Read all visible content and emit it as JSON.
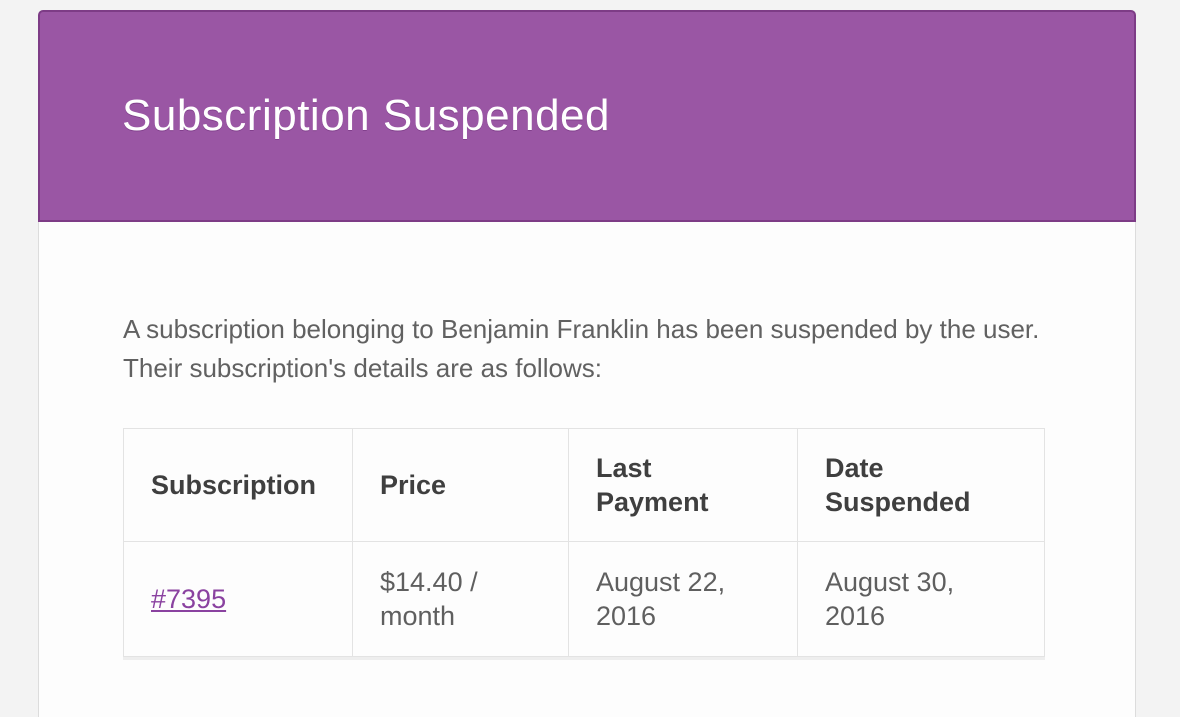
{
  "colors": {
    "page_background": "#f3f3f3",
    "header_background": "#9a56a4",
    "header_border": "#7d3c86",
    "header_text": "#ffffff",
    "body_background": "#fdfdfd",
    "body_border": "#dcdcdc",
    "paragraph_text": "#616161",
    "table_border": "#e3e3e3",
    "table_header_text": "#3f3f3f",
    "table_cell_text": "#5f5f5f",
    "link_color": "#8a42a0"
  },
  "header": {
    "title": "Subscription Suspended"
  },
  "content": {
    "intro_line1": "A subscription belonging to Benjamin Franklin has been suspended by the user.",
    "intro_line2": "Their subscription's details are as follows:"
  },
  "table": {
    "headers": [
      "Subscription",
      "Price",
      "Last Payment",
      "Date Suspended"
    ],
    "rows": [
      {
        "subscription_id": "#7395",
        "price": "$14.40 / month",
        "last_payment": "August 22, 2016",
        "date_suspended": "August 30, 2016"
      }
    ]
  }
}
